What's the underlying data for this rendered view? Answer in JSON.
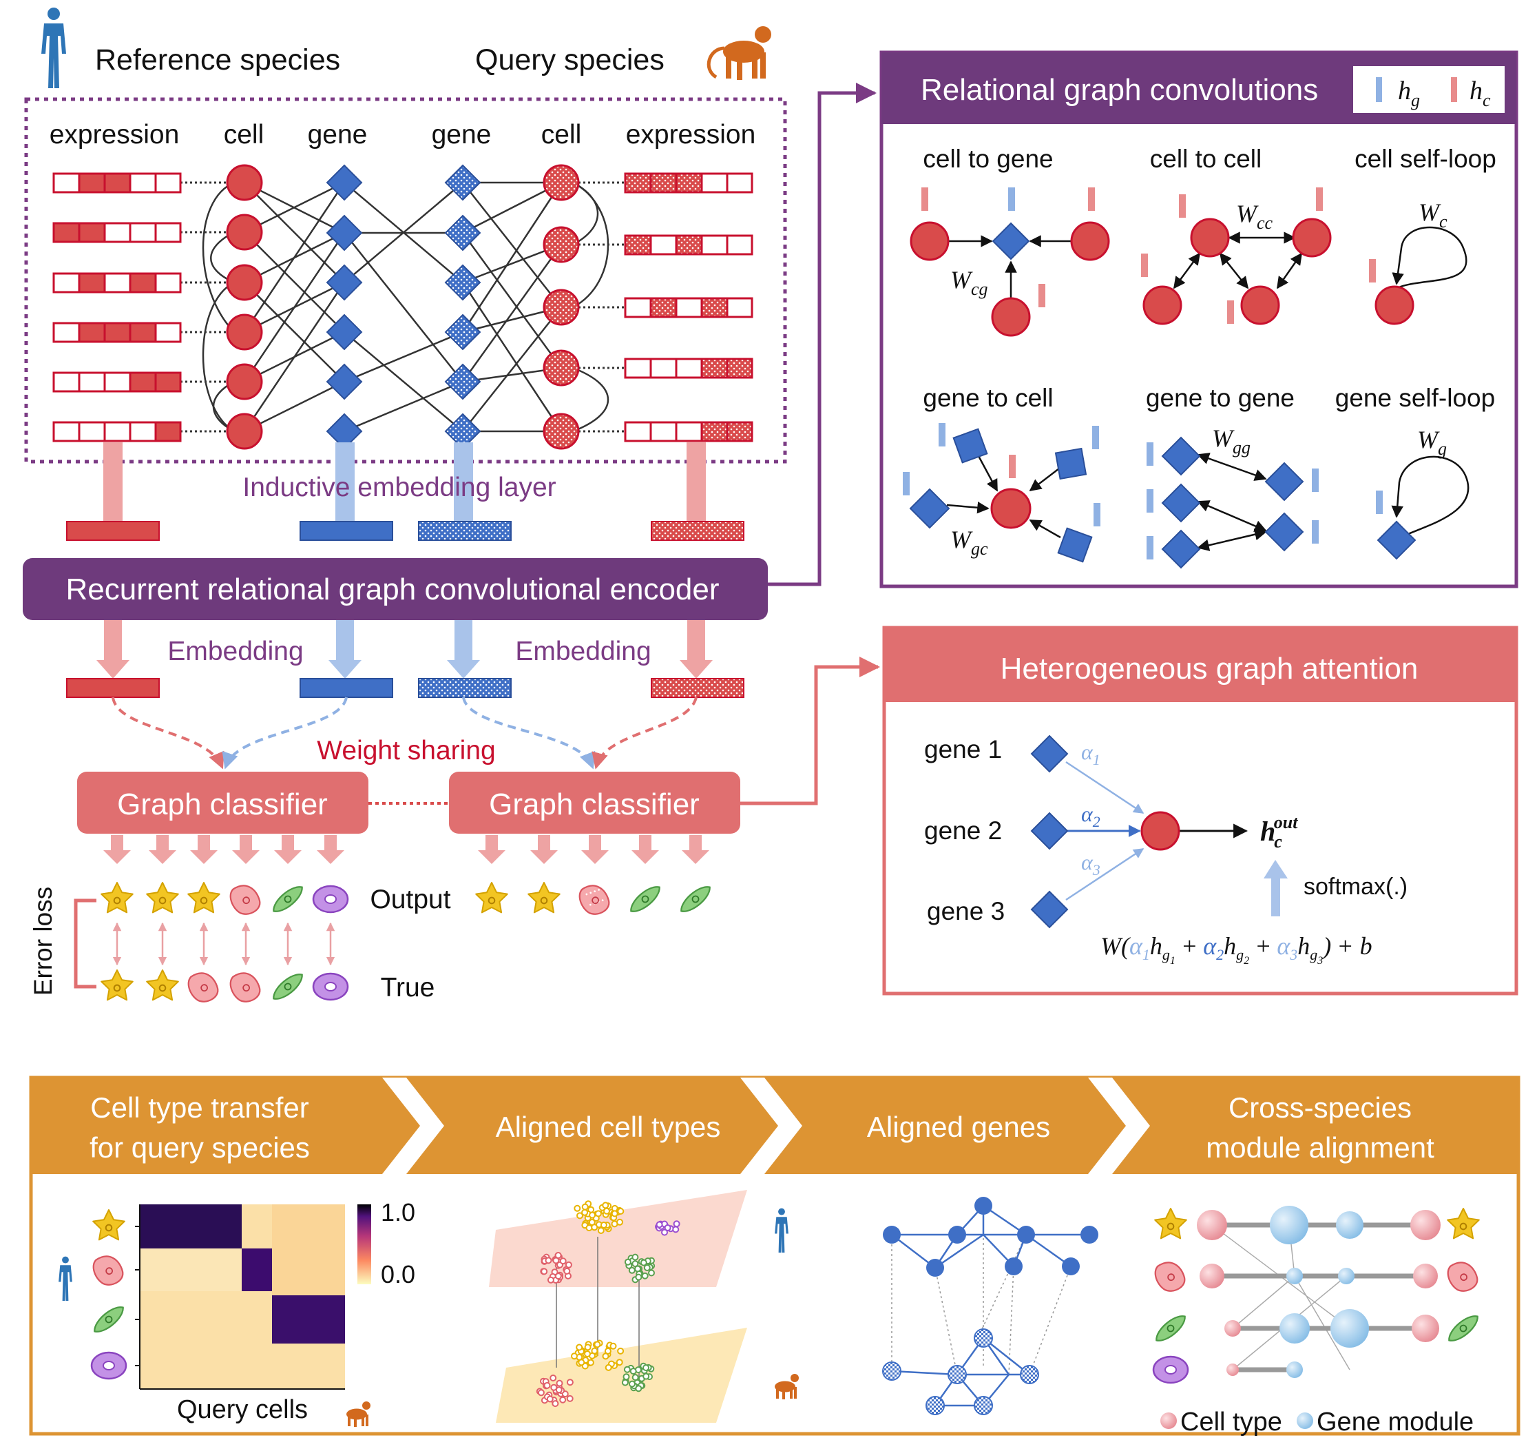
{
  "top": {
    "reference_species": "Reference species",
    "query_species": "Query species",
    "col_expression_left": "expression",
    "col_cell_left": "cell",
    "col_gene_left": "gene",
    "col_gene_right": "gene",
    "col_cell_right": "cell",
    "col_expression_right": "expression",
    "inductive_layer": "Inductive embedding layer",
    "encoder": "Recurrent relational graph convolutional encoder",
    "embedding_left": "Embedding",
    "embedding_right": "Embedding",
    "weight_sharing": "Weight sharing",
    "classifier_left": "Graph classifier",
    "classifier_right": "Graph classifier",
    "error_loss": "Error loss",
    "output": "Output",
    "true": "True"
  },
  "rgc": {
    "title": "Relational graph convolutions",
    "legend_hg": "h",
    "legend_hg_sub": "g",
    "legend_hc": "h",
    "legend_hc_sub": "c",
    "cell_to_gene": "cell to gene",
    "cell_to_cell": "cell to cell",
    "cell_self_loop": "cell self-loop",
    "gene_to_cell": "gene to cell",
    "gene_to_gene": "gene to gene",
    "gene_self_loop": "gene self-loop",
    "w_cg": "W",
    "w_cg_sub": "cg",
    "w_cc": "W",
    "w_cc_sub": "cc",
    "w_c": "W",
    "w_c_sub": "c",
    "w_gc": "W",
    "w_gc_sub": "gc",
    "w_gg": "W",
    "w_gg_sub": "gg",
    "w_g": "W",
    "w_g_sub": "g"
  },
  "hga": {
    "title": "Heterogeneous graph attention",
    "gene1": "gene 1",
    "gene2": "gene 2",
    "gene3": "gene 3",
    "alpha1": "α",
    "alpha1_sub": "1",
    "alpha2": "α",
    "alpha2_sub": "2",
    "alpha3": "α",
    "alpha3_sub": "3",
    "hout_h": "h",
    "hout_sub": "c",
    "hout_sup": "out",
    "softmax": "softmax(.)",
    "formula_pre": "W(",
    "formula_a": "α",
    "formula_h": "h",
    "formula_g": "g",
    "formula_plus": "+",
    "formula_post": ")",
    "formula_b": "+ b",
    "formula_idx1": "1",
    "formula_idx2": "2",
    "formula_idx3": "3"
  },
  "bottom": {
    "steps": [
      {
        "line1": "Cell type transfer",
        "line2": "for query species"
      },
      {
        "line1": "Aligned cell types",
        "line2": ""
      },
      {
        "line1": "Aligned genes",
        "line2": ""
      },
      {
        "line1": "Cross-species",
        "line2": "module alignment"
      }
    ],
    "colorbar_max": "1.0",
    "colorbar_min": "0.0",
    "query_cells": "Query cells",
    "cell_type": "Cell type",
    "gene_module": "Gene module"
  },
  "colors": {
    "red": "#d94b4b",
    "red_dark": "#c8102e",
    "blue": "#3f6fc6",
    "purple": "#6e3a7c",
    "salmon": "#e06f70",
    "orange": "#dd9433",
    "yellow": "#f2c523",
    "green": "#7cc576",
    "violet": "#a15bd1"
  }
}
